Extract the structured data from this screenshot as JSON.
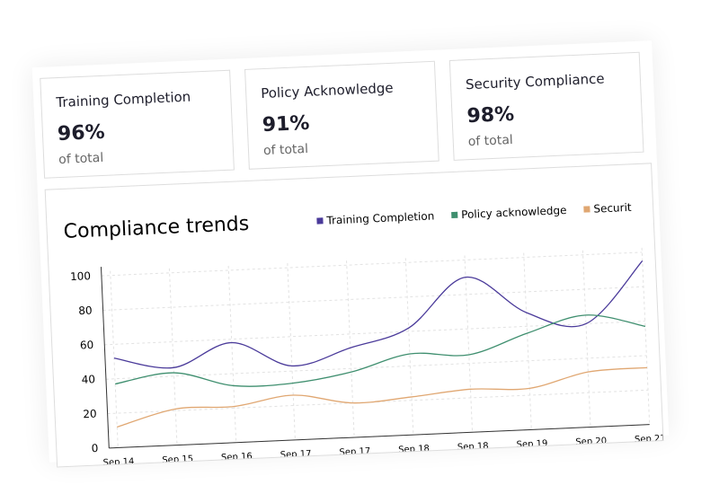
{
  "cards": [
    {
      "title": "Training Completion",
      "value": "96%",
      "sub": "of total"
    },
    {
      "title": "Policy Acknowledge",
      "value": "91%",
      "sub": "of total"
    },
    {
      "title": "Security Compliance",
      "value": "98%",
      "sub": "of total"
    }
  ],
  "chart_data": {
    "type": "line",
    "title": "Compliance trends",
    "categories": [
      "Sep 14",
      "Sep 15",
      "Sep 16",
      "Sep 17",
      "Sep 17",
      "Sep 18",
      "Sep 18",
      "Sep 19",
      "Sep 20",
      "Sep 21"
    ],
    "series": [
      {
        "name": "Training Completion",
        "color": "#4a3a9a",
        "values": [
          52,
          45,
          58,
          43,
          52,
          62,
          90,
          68,
          60,
          95
        ]
      },
      {
        "name": "Policy acknowledge",
        "color": "#3f8f6f",
        "values": [
          37,
          42,
          33,
          33,
          38,
          47,
          45,
          56,
          65,
          57
        ]
      },
      {
        "name": "Securit",
        "color": "#e0a772",
        "values": [
          12,
          21,
          21,
          26,
          20,
          22,
          25,
          24,
          32,
          33
        ]
      }
    ],
    "ylim": [
      0,
      100
    ],
    "yticks": [
      0,
      20,
      40,
      60,
      80,
      100
    ],
    "grid": true
  }
}
